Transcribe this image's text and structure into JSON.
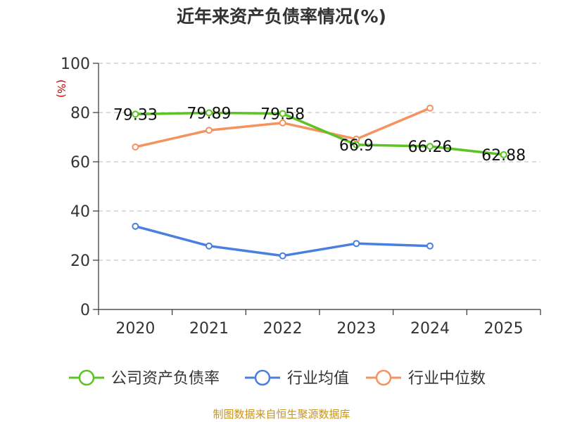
{
  "title": "近年来资产负债率情况(%)",
  "source": "制图数据来自恒生聚源数据库",
  "chart_data": {
    "type": "line",
    "title": "近年来资产负债率情况(%)",
    "ylabel": "(%)",
    "ylim": [
      0,
      100
    ],
    "yticks": [
      0,
      20,
      40,
      60,
      80,
      100
    ],
    "grid": "horizontal-dashed",
    "legend_position": "bottom",
    "categories": [
      "2020",
      "2021",
      "2022",
      "2023",
      "2024",
      "2025"
    ],
    "series": [
      {
        "name": "公司资产负债率",
        "color": "#5bc423",
        "values": [
          79.33,
          79.89,
          79.58,
          66.9,
          66.26,
          62.88
        ],
        "labels": [
          "79.33",
          "79.89",
          "79.58",
          "66.9",
          "66.26",
          "62.88"
        ]
      },
      {
        "name": "行业均值",
        "color": "#4a7fe0",
        "values": [
          33.8,
          25.8,
          21.8,
          26.8,
          25.8,
          null
        ]
      },
      {
        "name": "行业中位数",
        "color": "#f5925e",
        "values": [
          66,
          72.8,
          75.8,
          69.2,
          81.8,
          null
        ]
      }
    ]
  }
}
